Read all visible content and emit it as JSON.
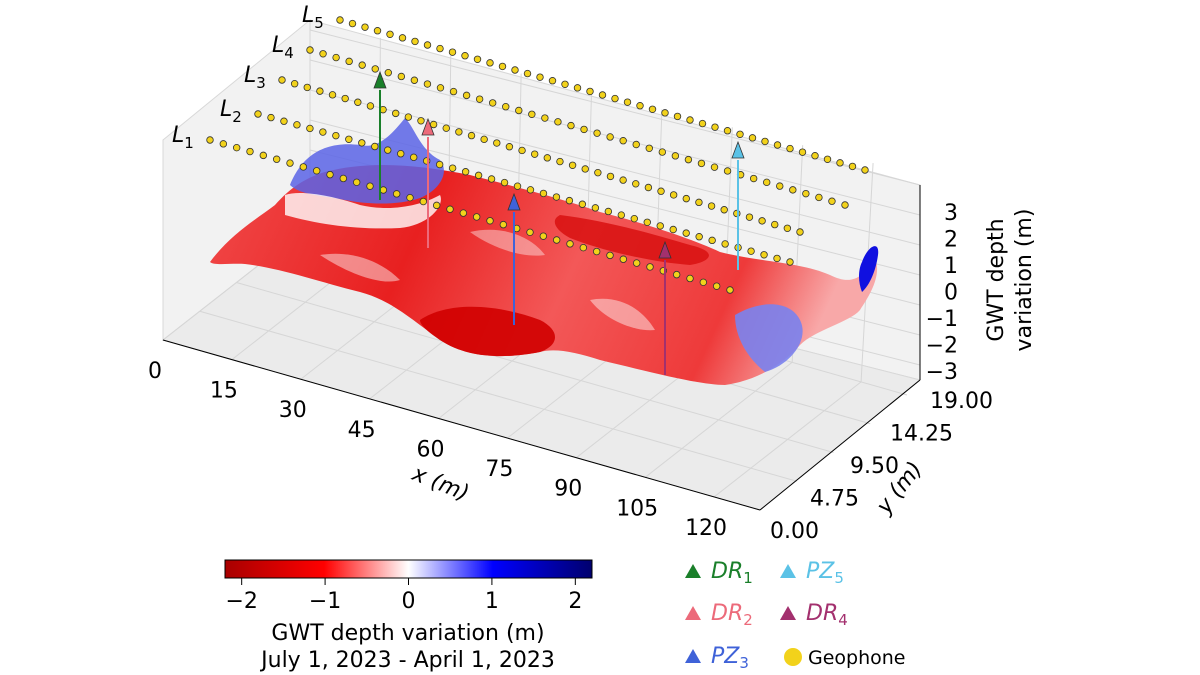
{
  "chart_data": {
    "type": "surface3d",
    "title": "",
    "xlabel": "x (m)",
    "ylabel": "y (m)",
    "zlabel_line1": "GWT depth",
    "zlabel_line2": "variation (m)",
    "x_ticks": [
      "0",
      "15",
      "30",
      "45",
      "60",
      "75",
      "90",
      "105",
      "120"
    ],
    "y_ticks": [
      "0.00",
      "4.75",
      "9.50",
      "14.25",
      "19.00"
    ],
    "z_ticks": [
      "3",
      "2",
      "1",
      "0",
      "−1",
      "−2",
      "−3"
    ],
    "xlim": [
      0,
      130
    ],
    "ylim": [
      0,
      19
    ],
    "zlim": [
      -3,
      3
    ],
    "survey_lines": [
      {
        "name": "L",
        "sub": "1"
      },
      {
        "name": "L",
        "sub": "2"
      },
      {
        "name": "L",
        "sub": "3"
      },
      {
        "name": "L",
        "sub": "4"
      },
      {
        "name": "L",
        "sub": "5"
      }
    ],
    "wells": [
      {
        "name": "DR",
        "sub": "1",
        "color": "#1a7f2a"
      },
      {
        "name": "DR",
        "sub": "2",
        "color": "#ec6a7a"
      },
      {
        "name": "PZ",
        "sub": "3",
        "color": "#3f62d8"
      },
      {
        "name": "DR",
        "sub": "4",
        "color": "#a3306e"
      },
      {
        "name": "PZ",
        "sub": "5",
        "color": "#5bc2e6"
      }
    ],
    "geophone_label": "Geophone",
    "geophone_color": "#f2d21b",
    "colorbar": {
      "ticks": [
        "−2",
        "−1",
        "0",
        "1",
        "2"
      ],
      "range": [
        -2.2,
        2.2
      ],
      "label": "GWT depth variation (m)",
      "sublabel": "July 1, 2023 - April 1, 2023",
      "colors": [
        "#c60000",
        "#ff0000",
        "#ffffff",
        "#0000ff",
        "#00007e"
      ]
    }
  }
}
